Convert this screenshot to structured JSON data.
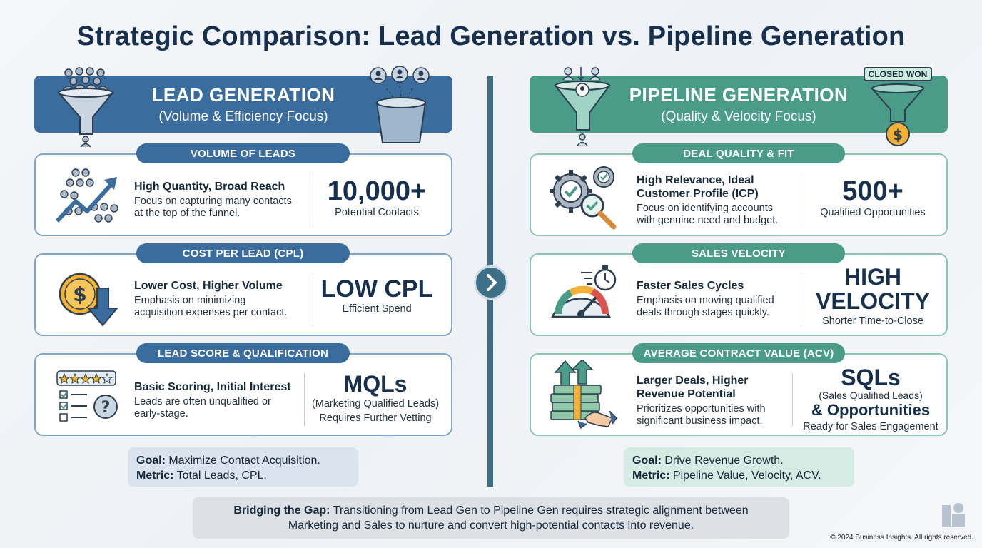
{
  "title": "Strategic Comparison: Lead Generation vs. Pipeline Generation",
  "lead": {
    "header_title": "LEAD GENERATION",
    "header_subtitle": "(Volume & Efficiency Focus)",
    "sections": [
      {
        "pill": "VOLUME OF LEADS",
        "heading": "High Quantity, Broad Reach",
        "desc_lines": [
          "Focus on capturing many contacts",
          "at the top of the funnel."
        ],
        "stat": "10,000+",
        "stat_sub": "Potential Contacts"
      },
      {
        "pill": "COST PER LEAD (CPL)",
        "heading": "Lower Cost, Higher Volume",
        "desc_lines": [
          "Emphasis on minimizing",
          "acquisition expenses per contact."
        ],
        "stat": "LOW CPL",
        "stat_sub": "Efficient Spend"
      },
      {
        "pill": "LEAD SCORE & QUALIFICATION",
        "heading": "Basic Scoring, Initial Interest",
        "desc_lines": [
          "Leads are often unqualified or",
          "early-stage."
        ],
        "stat": "MQLs",
        "stat_sub_lines": [
          "(Marketing Qualified Leads)",
          "Requires Further Vetting"
        ]
      }
    ],
    "goal_label": "Goal:",
    "goal_text": "Maximize Contact Acquisition.",
    "metric_label": "Metric:",
    "metric_text": "Total Leads, CPL."
  },
  "pipeline": {
    "header_title": "PIPELINE GENERATION",
    "header_subtitle": "(Quality & Velocity Focus)",
    "badge": "CLOSED WON",
    "sections": [
      {
        "pill": "DEAL QUALITY & FIT",
        "heading_lines": [
          "High Relevance, Ideal",
          "Customer Profile (ICP)"
        ],
        "desc_lines": [
          "Focus on identifying accounts",
          "with genuine need and budget."
        ],
        "stat": "500+",
        "stat_sub": "Qualified Opportunities"
      },
      {
        "pill": "SALES VELOCITY",
        "heading": "Faster Sales Cycles",
        "desc_lines": [
          "Emphasis on moving qualified",
          "deals through stages quickly."
        ],
        "stat_lines": [
          "HIGH",
          "VELOCITY"
        ],
        "stat_sub": "Shorter Time-to-Close"
      },
      {
        "pill": "AVERAGE CONTRACT VALUE (ACV)",
        "heading_lines": [
          "Larger Deals, Higher",
          "Revenue Potential"
        ],
        "desc_lines": [
          "Prioritizes opportunities with",
          "significant business impact."
        ],
        "stat": "SQLs",
        "stat_mid": "(Sales Qualified Leads)",
        "stat_big2": "& Opportunities",
        "stat_sub": "Ready for Sales Engagement"
      }
    ],
    "goal_label": "Goal:",
    "goal_text": "Drive Revenue Growth.",
    "metric_label": "Metric:",
    "metric_text": "Pipeline Value, Velocity, ACV."
  },
  "bridge": {
    "label": "Bridging the Gap:",
    "line1": "Transitioning from Lead Gen to Pipeline Gen requires strategic alignment between",
    "line2": "Marketing and Sales to nurture and convert high-potential contacts into revenue."
  },
  "copyright": "© 2024 Business Insights. All rights reserved.",
  "colors": {
    "lead": "#3a6c9e",
    "pipeline": "#4a9c88",
    "title": "#17304d",
    "accent_gold": "#f2b134",
    "accent_red": "#d9534f"
  }
}
